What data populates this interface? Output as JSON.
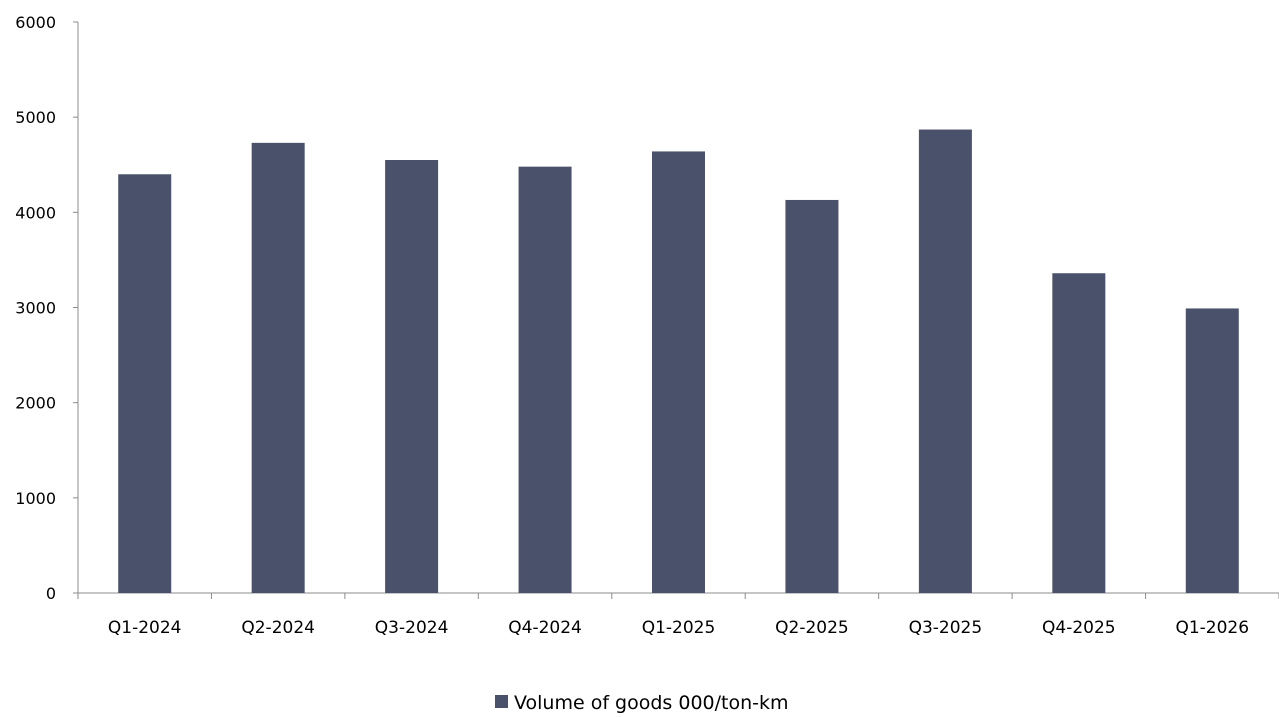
{
  "chart_data": {
    "type": "bar",
    "categories": [
      "Q1-2024",
      "Q2-2024",
      "Q3-2024",
      "Q4-2024",
      "Q1-2025",
      "Q2-2025",
      "Q3-2025",
      "Q4-2025",
      "Q1-2026"
    ],
    "series": [
      {
        "name": "Volume of goods 000/ton-km",
        "values": [
          4400,
          4730,
          4550,
          4480,
          4640,
          4130,
          4870,
          3360,
          2990
        ],
        "color": "#4a516a"
      }
    ],
    "ylim": [
      0,
      6000
    ],
    "yticks": [
      0,
      1000,
      2000,
      3000,
      4000,
      5000,
      6000
    ],
    "xlabel": "",
    "ylabel": "",
    "title": "",
    "grid": false,
    "legend_position": "bottom-center"
  }
}
